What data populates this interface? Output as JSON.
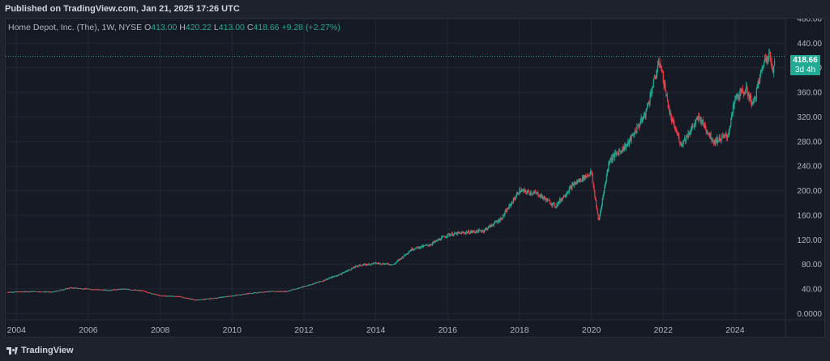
{
  "header": {
    "published": "Published on TradingView.com, Jan 21, 2025 17:26 UTC"
  },
  "legend": {
    "symbol": "Home Depot, Inc. (The), 1W, NYSE",
    "o_label": "O",
    "o": "413.00",
    "h_label": "H",
    "h": "420.22",
    "l_label": "L",
    "l": "413.00",
    "c_label": "C",
    "c": "418.66",
    "change": "+9.28 (+2.27%)"
  },
  "price_tag": {
    "price": "418.66",
    "countdown": "3d 4h"
  },
  "footer": {
    "brand": "TradingView"
  },
  "colors": {
    "up": "#22ab94",
    "down": "#f23645",
    "background": "#161a25",
    "grid": "#232733",
    "text": "#b2b5be"
  },
  "chart_data": {
    "type": "candlestick",
    "interval": "1W",
    "ylim": [
      -10,
      480
    ],
    "xlim": [
      2003.7,
      2025.4
    ],
    "y_ticks": [
      "480.00",
      "440.00",
      "400.00",
      "360.00",
      "320.00",
      "280.00",
      "240.00",
      "200.00",
      "160.00",
      "120.00",
      "80.00",
      "40.00",
      "0.0000"
    ],
    "x_ticks": [
      "2004",
      "2006",
      "2008",
      "2010",
      "2012",
      "2014",
      "2016",
      "2018",
      "2020",
      "2022",
      "2024"
    ],
    "last_price": 418.66,
    "grid": true,
    "price_path": [
      [
        2003.75,
        35
      ],
      [
        2004.5,
        36
      ],
      [
        2005.0,
        35
      ],
      [
        2005.5,
        42
      ],
      [
        2006.0,
        40
      ],
      [
        2006.5,
        38
      ],
      [
        2007.0,
        40
      ],
      [
        2007.5,
        37
      ],
      [
        2008.0,
        29
      ],
      [
        2008.5,
        28
      ],
      [
        2009.0,
        22
      ],
      [
        2009.5,
        25
      ],
      [
        2010.0,
        29
      ],
      [
        2010.5,
        33
      ],
      [
        2011.0,
        36
      ],
      [
        2011.5,
        36
      ],
      [
        2012.0,
        44
      ],
      [
        2012.5,
        53
      ],
      [
        2013.0,
        64
      ],
      [
        2013.5,
        78
      ],
      [
        2014.0,
        82
      ],
      [
        2014.5,
        80
      ],
      [
        2015.0,
        105
      ],
      [
        2015.5,
        112
      ],
      [
        2016.0,
        128
      ],
      [
        2016.5,
        132
      ],
      [
        2017.0,
        135
      ],
      [
        2017.5,
        155
      ],
      [
        2018.0,
        200
      ],
      [
        2018.5,
        195
      ],
      [
        2019.0,
        175
      ],
      [
        2019.5,
        210
      ],
      [
        2020.0,
        230
      ],
      [
        2020.2,
        150
      ],
      [
        2020.5,
        250
      ],
      [
        2021.0,
        275
      ],
      [
        2021.5,
        325
      ],
      [
        2021.9,
        412
      ],
      [
        2022.2,
        320
      ],
      [
        2022.5,
        275
      ],
      [
        2023.0,
        320
      ],
      [
        2023.4,
        280
      ],
      [
        2023.8,
        290
      ],
      [
        2024.0,
        350
      ],
      [
        2024.3,
        365
      ],
      [
        2024.5,
        340
      ],
      [
        2024.8,
        410
      ],
      [
        2024.95,
        425
      ],
      [
        2025.05,
        390
      ],
      [
        2025.1,
        418.66
      ]
    ]
  }
}
